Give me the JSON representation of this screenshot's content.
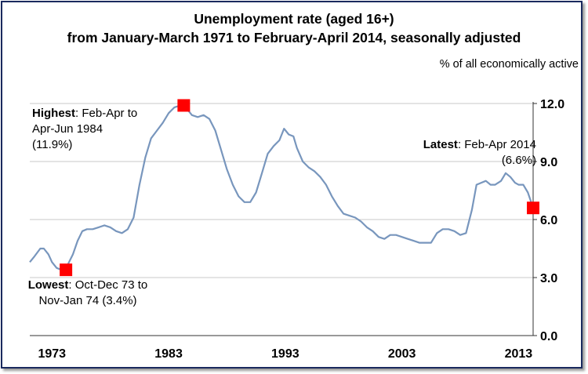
{
  "chart_data": {
    "type": "line",
    "title": "Unemployment rate (aged 16+)",
    "subtitle": "from January-March 1971 to February-April 2014, seasonally adjusted",
    "ylabel": "% of all economically active",
    "xlabel": "",
    "ylim": [
      0,
      12
    ],
    "xlim": [
      1971.1,
      2014.25
    ],
    "yticks": [
      "0.0",
      "3.0",
      "6.0",
      "9.0",
      "12.0"
    ],
    "xticks": [
      "1973",
      "1983",
      "1993",
      "2003",
      "2013"
    ],
    "grid": "horizontal",
    "line_color": "#7896bd",
    "marker_color": "#ff0000",
    "series": [
      {
        "x": [
          1971.1,
          1971.5,
          1972.0,
          1972.3,
          1972.7,
          1973.0,
          1973.4,
          1973.8,
          1974.3,
          1974.8,
          1975.2,
          1975.6,
          1976.0,
          1976.5,
          1977.0,
          1977.5,
          1978.0,
          1978.5,
          1979.0,
          1979.5,
          1980.0,
          1980.5,
          1981.0,
          1981.5,
          1982.0,
          1982.5,
          1983.0,
          1983.5,
          1984.0,
          1984.3,
          1984.6,
          1985.0,
          1985.5,
          1986.0,
          1986.5,
          1987.0,
          1987.5,
          1988.0,
          1988.5,
          1989.0,
          1989.5,
          1990.0,
          1990.5,
          1991.0,
          1991.5,
          1992.0,
          1992.5,
          1992.9,
          1993.3,
          1993.7,
          1994.0,
          1994.5,
          1995.0,
          1995.5,
          1996.0,
          1996.5,
          1997.0,
          1997.5,
          1998.0,
          1998.5,
          1999.0,
          1999.5,
          2000.0,
          2000.5,
          2001.0,
          2001.5,
          2002.0,
          2002.5,
          2003.0,
          2003.5,
          2004.0,
          2004.5,
          2005.0,
          2005.5,
          2006.0,
          2006.5,
          2007.0,
          2007.5,
          2008.0,
          2008.5,
          2009.0,
          2009.4,
          2009.8,
          2010.2,
          2010.6,
          2011.0,
          2011.5,
          2011.9,
          2012.3,
          2012.7,
          2013.0,
          2013.4,
          2013.8,
          2014.25
        ],
        "y": [
          3.8,
          4.1,
          4.5,
          4.5,
          4.2,
          3.8,
          3.5,
          3.4,
          3.6,
          4.2,
          4.9,
          5.4,
          5.5,
          5.5,
          5.6,
          5.7,
          5.6,
          5.4,
          5.3,
          5.5,
          6.1,
          7.8,
          9.2,
          10.2,
          10.6,
          11.0,
          11.5,
          11.8,
          11.9,
          11.9,
          11.7,
          11.4,
          11.3,
          11.4,
          11.2,
          10.6,
          9.6,
          8.6,
          7.8,
          7.2,
          6.9,
          6.9,
          7.4,
          8.4,
          9.4,
          9.8,
          10.1,
          10.7,
          10.4,
          10.3,
          9.7,
          9.0,
          8.7,
          8.5,
          8.2,
          7.8,
          7.2,
          6.7,
          6.3,
          6.2,
          6.1,
          5.9,
          5.6,
          5.4,
          5.1,
          5.0,
          5.2,
          5.2,
          5.1,
          5.0,
          4.9,
          4.8,
          4.8,
          4.8,
          5.3,
          5.5,
          5.5,
          5.4,
          5.2,
          5.3,
          6.5,
          7.8,
          7.9,
          8.0,
          7.8,
          7.8,
          8.0,
          8.4,
          8.2,
          7.9,
          7.8,
          7.8,
          7.4,
          6.6
        ]
      }
    ],
    "annotations": [
      {
        "x": 1974.2,
        "y": 3.4,
        "label": "Lowest",
        "text": ": Oct-Dec 73 to Nov-Jan 74 (3.4%)"
      },
      {
        "x": 1984.3,
        "y": 11.9,
        "label": "Highest",
        "text": ": Feb-Apr to Apr-Jun 1984 (11.9%)"
      },
      {
        "x": 2014.25,
        "y": 6.6,
        "label": "Latest",
        "text": ": Feb-Apr 2014 (6.6%)"
      }
    ]
  }
}
